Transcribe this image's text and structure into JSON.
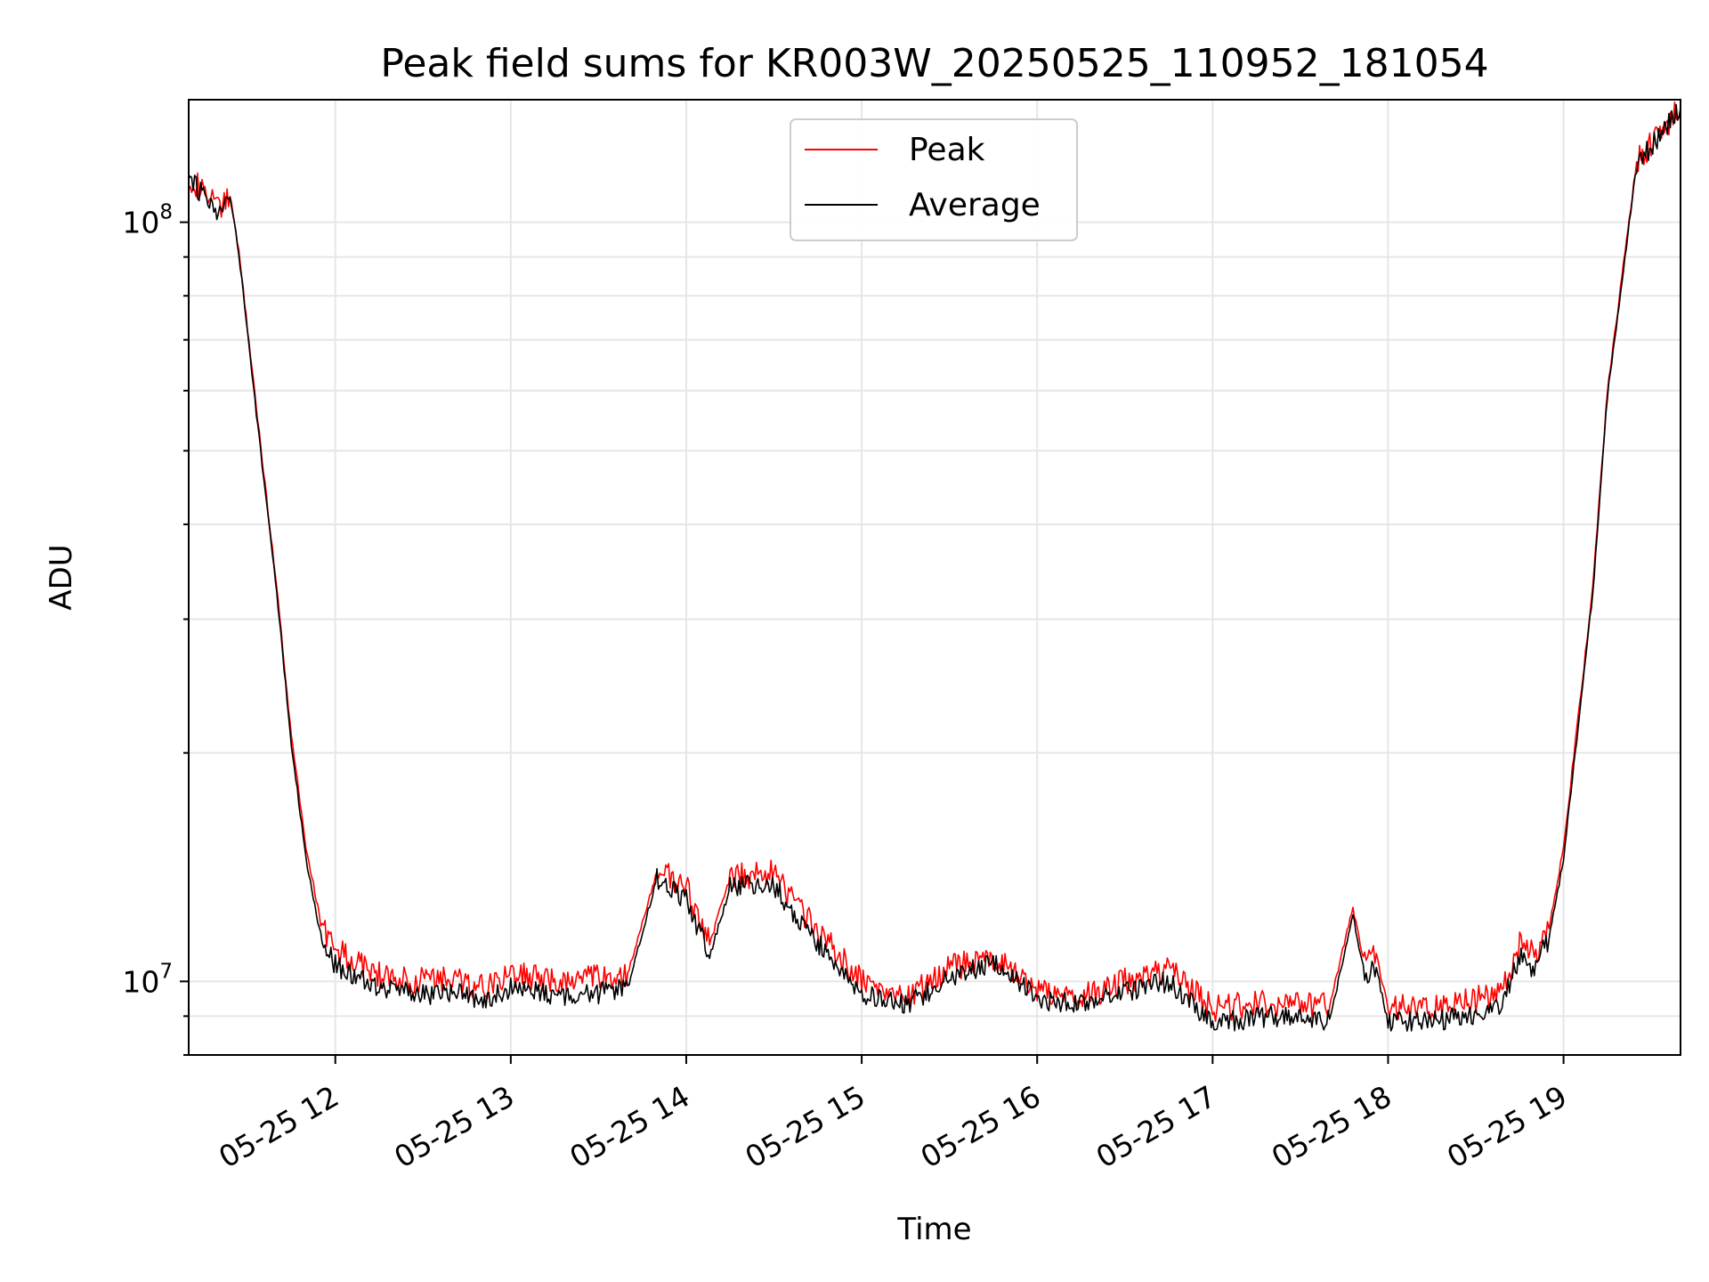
{
  "chart_data": {
    "type": "line",
    "title": "Peak field sums for KR003W_20250525_110952_181054",
    "xlabel": "Time",
    "ylabel": "ADU",
    "yscale": "log",
    "ylim": [
      8000000,
      145000000
    ],
    "xlim": [
      "2025-05-25 11:09:52",
      "2025-05-25 19:40:00"
    ],
    "grid": true,
    "legend_position": "top-center",
    "x_ticks": [
      {
        "t": "2025-05-25 12:00",
        "label": "05-25 12"
      },
      {
        "t": "2025-05-25 13:00",
        "label": "05-25 13"
      },
      {
        "t": "2025-05-25 14:00",
        "label": "05-25 14"
      },
      {
        "t": "2025-05-25 15:00",
        "label": "05-25 15"
      },
      {
        "t": "2025-05-25 16:00",
        "label": "05-25 16"
      },
      {
        "t": "2025-05-25 17:00",
        "label": "05-25 17"
      },
      {
        "t": "2025-05-25 18:00",
        "label": "05-25 18"
      },
      {
        "t": "2025-05-25 19:00",
        "label": "05-25 19"
      }
    ],
    "y_ticks": [
      {
        "value": 10000000,
        "base": "10",
        "exp": "7"
      },
      {
        "value": 100000000,
        "base": "10",
        "exp": "8"
      }
    ],
    "series": [
      {
        "name": "Peak",
        "color": "#ff0000",
        "x": [
          "2025-05-25 11:09:52",
          "2025-05-25 11:20",
          "2025-05-25 11:24",
          "2025-05-25 11:27",
          "2025-05-25 11:33",
          "2025-05-25 11:40",
          "2025-05-25 11:45",
          "2025-05-25 11:50",
          "2025-05-25 11:55",
          "2025-05-25 12:00",
          "2025-05-25 12:15",
          "2025-05-25 12:30",
          "2025-05-25 12:40",
          "2025-05-25 12:50",
          "2025-05-25 13:00",
          "2025-05-25 13:20",
          "2025-05-25 13:40",
          "2025-05-25 13:50",
          "2025-05-25 14:00",
          "2025-05-25 14:08",
          "2025-05-25 14:15",
          "2025-05-25 14:30",
          "2025-05-25 14:40",
          "2025-05-25 14:50",
          "2025-05-25 15:00",
          "2025-05-25 15:15",
          "2025-05-25 15:30",
          "2025-05-25 15:45",
          "2025-05-25 16:00",
          "2025-05-25 16:15",
          "2025-05-25 16:30",
          "2025-05-25 16:45",
          "2025-05-25 17:00",
          "2025-05-25 17:20",
          "2025-05-25 17:40",
          "2025-05-25 17:48",
          "2025-05-25 17:52",
          "2025-05-25 17:56",
          "2025-05-25 18:00",
          "2025-05-25 18:20",
          "2025-05-25 18:38",
          "2025-05-25 18:45",
          "2025-05-25 18:50",
          "2025-05-25 18:55",
          "2025-05-25 19:00",
          "2025-05-25 19:10",
          "2025-05-25 19:15",
          "2025-05-25 19:25",
          "2025-05-25 19:40"
        ],
        "y": [
          115000000,
          104000000,
          109000000,
          92000000,
          57000000,
          33000000,
          21000000,
          15000000,
          12000000,
          11000000,
          10200000,
          10000000,
          10100000,
          9800000,
          10200000,
          10000000,
          10200000,
          14000000,
          13300000,
          11200000,
          13700000,
          13900000,
          12300000,
          11100000,
          10000000,
          9500000,
          10400000,
          10800000,
          9700000,
          9500000,
          10000000,
          10400000,
          9200000,
          9400000,
          9300000,
          12500000,
          10500000,
          10800000,
          9200000,
          9300000,
          9600000,
          11200000,
          10800000,
          11800000,
          15000000,
          33000000,
          60000000,
          120000000,
          142000000
        ]
      },
      {
        "name": "Average",
        "color": "#000000",
        "x": [
          "2025-05-25 11:09:52",
          "2025-05-25 11:20",
          "2025-05-25 11:24",
          "2025-05-25 11:27",
          "2025-05-25 11:33",
          "2025-05-25 11:40",
          "2025-05-25 11:45",
          "2025-05-25 11:50",
          "2025-05-25 11:55",
          "2025-05-25 12:00",
          "2025-05-25 12:15",
          "2025-05-25 12:30",
          "2025-05-25 12:40",
          "2025-05-25 12:50",
          "2025-05-25 13:00",
          "2025-05-25 13:20",
          "2025-05-25 13:40",
          "2025-05-25 13:50",
          "2025-05-25 14:00",
          "2025-05-25 14:08",
          "2025-05-25 14:15",
          "2025-05-25 14:30",
          "2025-05-25 14:40",
          "2025-05-25 14:50",
          "2025-05-25 15:00",
          "2025-05-25 15:15",
          "2025-05-25 15:30",
          "2025-05-25 15:45",
          "2025-05-25 16:00",
          "2025-05-25 16:15",
          "2025-05-25 16:30",
          "2025-05-25 16:45",
          "2025-05-25 17:00",
          "2025-05-25 17:20",
          "2025-05-25 17:40",
          "2025-05-25 17:48",
          "2025-05-25 17:52",
          "2025-05-25 17:56",
          "2025-05-25 18:00",
          "2025-05-25 18:20",
          "2025-05-25 18:38",
          "2025-05-25 18:45",
          "2025-05-25 18:50",
          "2025-05-25 18:55",
          "2025-05-25 19:00",
          "2025-05-25 19:10",
          "2025-05-25 19:15",
          "2025-05-25 19:25",
          "2025-05-25 19:40"
        ],
        "y": [
          114000000,
          103000000,
          108000000,
          91000000,
          56000000,
          32500000,
          20500000,
          14500000,
          11500000,
          10500000,
          9800000,
          9600000,
          9700000,
          9400000,
          9800000,
          9500000,
          9800000,
          13700000,
          12800000,
          10800000,
          13300000,
          13400000,
          11800000,
          10700000,
          9600000,
          9300000,
          10100000,
          10600000,
          9500000,
          9300000,
          9700000,
          10000000,
          8800000,
          9000000,
          8900000,
          12200000,
          10200000,
          10400000,
          8800000,
          8900000,
          9200000,
          10800000,
          10400000,
          11400000,
          14500000,
          32500000,
          59000000,
          119000000,
          141000000
        ]
      }
    ]
  }
}
